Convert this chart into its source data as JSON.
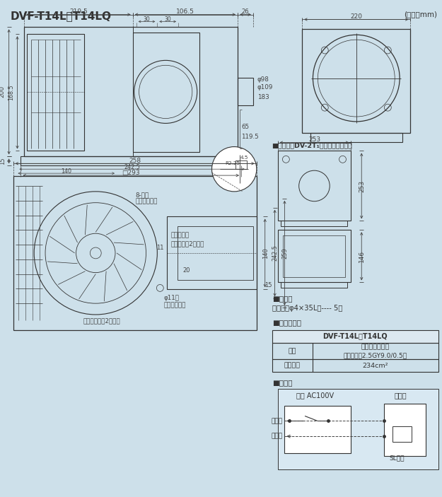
{
  "title": "DVF-T14L・T14LQ",
  "unit_label": "(単位：mm)",
  "bg_color": "#cde0ea",
  "line_color": "#333333",
  "dim_color": "#444444",
  "table_header": "DVF-T14L・T14LQ",
  "table_row1_label": "色調",
  "table_row1_val1": "ムーンホワイト",
  "table_row1_val2": "（マンセル2.5GY9.0/0.5）",
  "table_row2_label": "開口面積",
  "table_row2_value": "234cm²",
  "accessory_title": "■付属品",
  "accessory_text": "木ねじ（φ4×35L）---- 5本",
  "cover_title": "■本体カバー",
  "wiring_title": "■結線図",
  "wiring_power": "電源 AC100V",
  "wiring_voltage": "電圧側",
  "wiring_ground": "接地側",
  "wiring_fan": "換気扇",
  "wiring_sl": "SL端子",
  "hanger_title": "■吹下金具DV-2T₁（別売）取付位置",
  "note_8_long": "8-長穴",
  "note_main_hole": "本体取付用穴",
  "note_bellmouth": "ベルマウス",
  "note_handle": "取っ手部（2ヶ所）",
  "note_phi11": "φ11穴",
  "note_exhaust": "排気口取付用",
  "note_provisional": "仮固定ツメ（2ヶ所）",
  "dim_r2_25": "R2.25",
  "dim_4_5": "4.5"
}
